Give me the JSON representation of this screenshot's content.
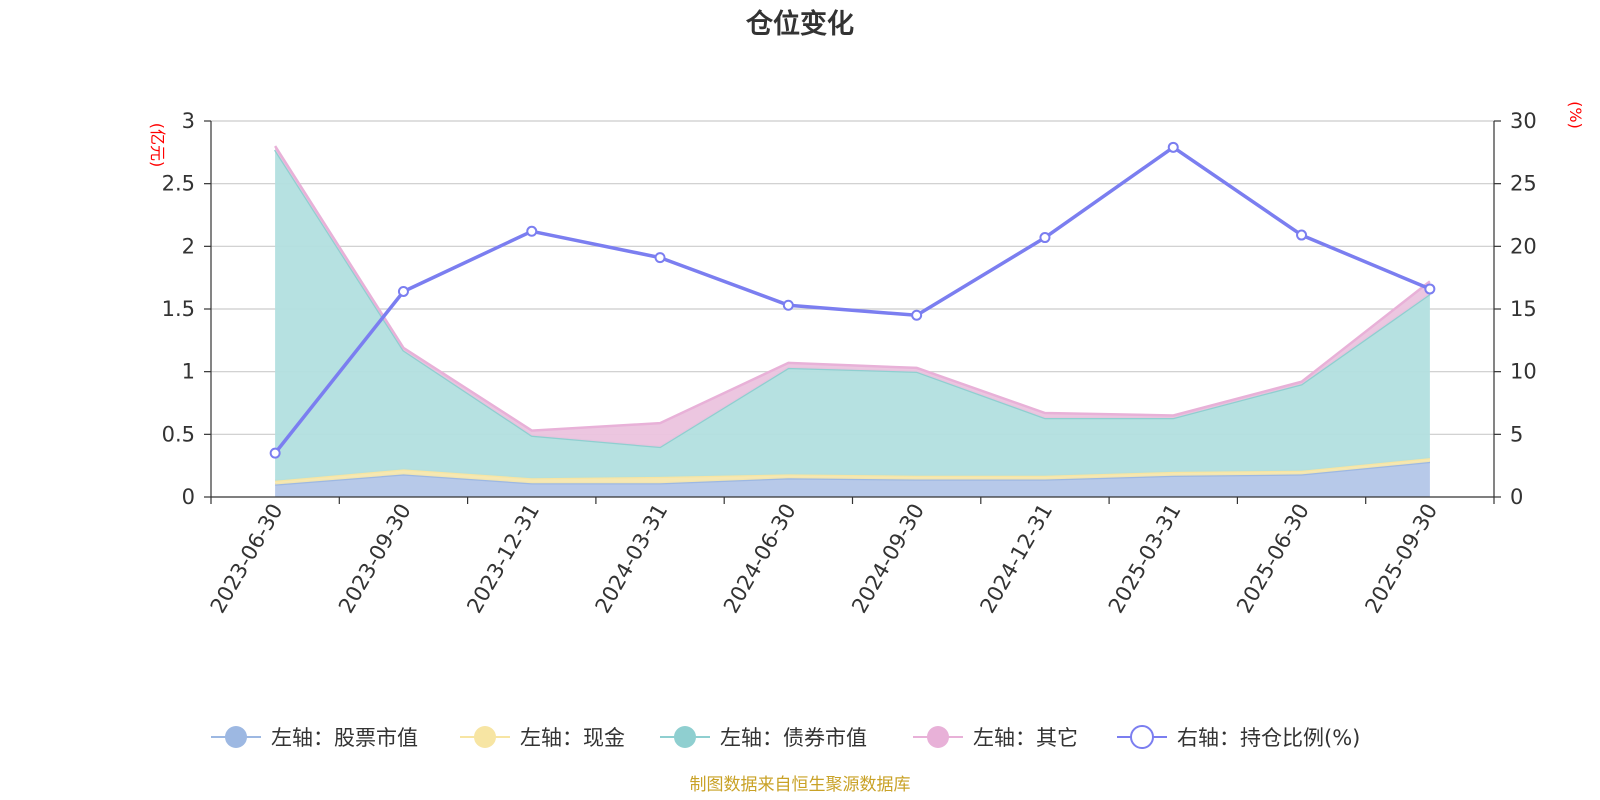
{
  "chart_data": {
    "type": "area",
    "title": "仓位变化",
    "categories": [
      "2023-06-30",
      "2023-09-30",
      "2023-12-31",
      "2024-03-31",
      "2024-06-30",
      "2024-09-30",
      "2024-12-31",
      "2025-03-31",
      "2025-06-30",
      "2025-09-30"
    ],
    "left_axis": {
      "unit": "(亿元)",
      "ylim": [
        0,
        3
      ],
      "ticks": [
        "0",
        "0.5",
        "1",
        "1.5",
        "2",
        "2.5",
        "3"
      ],
      "tick_values": [
        0,
        0.5,
        1,
        1.5,
        2,
        2.5,
        3
      ]
    },
    "right_axis": {
      "unit": "(%)",
      "ylim": [
        0,
        30
      ],
      "ticks": [
        "0",
        "5",
        "10",
        "15",
        "20",
        "25",
        "30"
      ],
      "tick_values": [
        0,
        5,
        10,
        15,
        20,
        25,
        30
      ]
    },
    "series": [
      {
        "name": "左轴：股票市值",
        "axis": "left",
        "stack": true,
        "color": "#9db8e2",
        "fill": "#b3c6e8",
        "values": [
          0.1,
          0.18,
          0.11,
          0.11,
          0.15,
          0.14,
          0.14,
          0.17,
          0.18,
          0.28
        ]
      },
      {
        "name": "左轴：现金",
        "axis": "left",
        "stack": true,
        "color": "#f7e5a3",
        "fill": "#f6e7ae",
        "values": [
          0.03,
          0.04,
          0.04,
          0.05,
          0.03,
          0.03,
          0.03,
          0.03,
          0.03,
          0.03
        ]
      },
      {
        "name": "左轴：债券市值",
        "axis": "left",
        "stack": true,
        "color": "#8fcfd0",
        "fill": "#b2dfdf",
        "values": [
          2.64,
          0.95,
          0.34,
          0.24,
          0.85,
          0.83,
          0.46,
          0.43,
          0.69,
          1.31
        ]
      },
      {
        "name": "左轴：其它",
        "axis": "left",
        "stack": true,
        "color": "#e8b1d8",
        "fill": "#ebc3de",
        "values": [
          0.03,
          0.02,
          0.04,
          0.19,
          0.04,
          0.03,
          0.04,
          0.02,
          0.02,
          0.1
        ]
      },
      {
        "name": "右轴：持仓比例(%)",
        "axis": "right",
        "type": "line",
        "color": "#7b7ef0",
        "values": [
          3.5,
          16.4,
          21.2,
          19.1,
          15.3,
          14.5,
          20.7,
          27.9,
          20.9,
          16.6
        ]
      }
    ],
    "source_note": "制图数据来自恒生聚源数据库"
  }
}
